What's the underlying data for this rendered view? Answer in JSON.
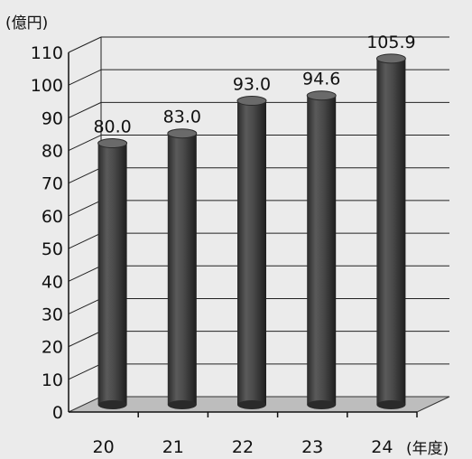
{
  "chart_data": {
    "type": "bar",
    "categories": [
      "20",
      "21",
      "22",
      "23",
      "24"
    ],
    "values": [
      80.0,
      83.0,
      93.0,
      94.6,
      105.9
    ],
    "value_labels": [
      "80.0",
      "83.0",
      "93.0",
      "94.6",
      "105.9"
    ],
    "y_ticks": [
      "0",
      "10",
      "20",
      "30",
      "40",
      "50",
      "60",
      "70",
      "80",
      "90",
      "100",
      "110"
    ],
    "ylim": [
      0,
      110
    ],
    "y_unit": "(億円)",
    "x_unit": "(年度)",
    "grid": true,
    "style": "3d-cylinder",
    "bar_color": "#444444",
    "floor_color": "#bdbdbd",
    "background_color": "#ebebeb"
  }
}
